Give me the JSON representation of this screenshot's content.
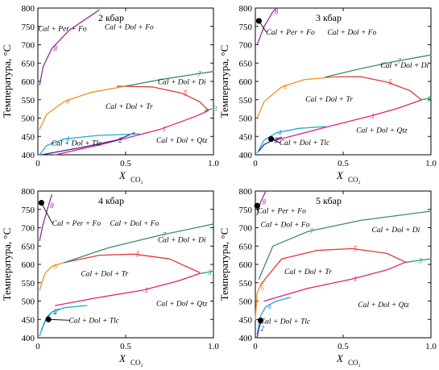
{
  "figure": {
    "y_axis_label": "Температура, °C",
    "x_axis_label": "X",
    "x_axis_label_sub": "CO₂",
    "curve_colors": {
      "1": "#e0207a",
      "2": "#2b2f8f",
      "3": "#2e9e5a",
      "4": "#1ea8d6",
      "5": "#e03a3a",
      "6": "#f0902a",
      "7": "#3e8a6e",
      "8": "#9c2a9c"
    }
  },
  "chart_data": [
    {
      "type": "line",
      "title": "2 кбар",
      "xlabel": "X CO₂",
      "ylabel": "Температура, °C",
      "xlim": [
        0,
        1
      ],
      "ylim": [
        400,
        800
      ],
      "x_ticks": [
        "0",
        "0.5",
        "1.0"
      ],
      "y_ticks": [
        "400",
        "450",
        "500",
        "550",
        "600",
        "650",
        "700",
        "750",
        "800"
      ],
      "series": [
        {
          "name": "1",
          "points": [
            [
              0.1,
              400
            ],
            [
              0.38,
              430
            ],
            [
              0.7,
              470
            ],
            [
              0.9,
              505
            ],
            [
              0.97,
              520
            ]
          ]
        },
        {
          "name": "2",
          "points": [
            [
              0.02,
              400
            ],
            [
              0.25,
              420
            ],
            [
              0.45,
              440
            ],
            [
              0.55,
              460
            ]
          ]
        },
        {
          "name": "3",
          "points": [
            [
              0.95,
              520
            ],
            [
              0.99,
              525
            ]
          ]
        },
        {
          "name": "4",
          "points": [
            [
              0.01,
              400
            ],
            [
              0.05,
              425
            ],
            [
              0.15,
              443
            ],
            [
              0.35,
              453
            ],
            [
              0.58,
              457
            ]
          ]
        },
        {
          "name": "5",
          "points": [
            [
              0.45,
              587
            ],
            [
              0.65,
              585
            ],
            [
              0.82,
              568
            ],
            [
              0.92,
              545
            ],
            [
              0.97,
              522
            ]
          ]
        },
        {
          "name": "6",
          "points": [
            [
              0.01,
              470
            ],
            [
              0.05,
              510
            ],
            [
              0.15,
              545
            ],
            [
              0.3,
              570
            ],
            [
              0.5,
              587
            ]
          ]
        },
        {
          "name": "7",
          "points": [
            [
              0.5,
              587
            ],
            [
              0.7,
              605
            ],
            [
              0.9,
              620
            ],
            [
              1.0,
              627
            ]
          ]
        },
        {
          "name": "8",
          "points": [
            [
              0.01,
              590
            ],
            [
              0.03,
              640
            ],
            [
              0.08,
              690
            ],
            [
              0.18,
              740
            ],
            [
              0.35,
              795
            ]
          ]
        }
      ],
      "annotations": [
        {
          "text": "Cal + Dol + Fo",
          "x": 0.52,
          "y": 742
        },
        {
          "text": "Cal + Dol + Di",
          "x": 0.82,
          "y": 592
        },
        {
          "text": "Cal + Dol + Tr",
          "x": 0.52,
          "y": 525
        },
        {
          "text": "Cal + Dol + Qtz",
          "x": 0.82,
          "y": 433
        },
        {
          "text": "Cal + Dol + Tlc",
          "x": 0.22,
          "y": 425
        },
        {
          "text": "Cal + Per + Fo",
          "x": 0.14,
          "y": 737
        }
      ],
      "points": []
    },
    {
      "type": "line",
      "title": "3 кбар",
      "xlabel": "X CO₂",
      "ylabel": "Температура, °C",
      "xlim": [
        0,
        1
      ],
      "ylim": [
        400,
        800
      ],
      "x_ticks": [
        "0",
        "0.5",
        "1.0"
      ],
      "y_ticks": [
        "400",
        "450",
        "500",
        "550",
        "600",
        "650",
        "700",
        "750",
        "800"
      ],
      "series": [
        {
          "name": "1",
          "points": [
            [
              0.12,
              440
            ],
            [
              0.4,
              475
            ],
            [
              0.65,
              505
            ],
            [
              0.8,
              525
            ],
            [
              0.95,
              550
            ]
          ]
        },
        {
          "name": "2",
          "points": [
            [
              0.02,
              410
            ],
            [
              0.05,
              428
            ],
            [
              0.1,
              440
            ],
            [
              0.15,
              448
            ]
          ]
        },
        {
          "name": "3",
          "points": [
            [
              0.94,
              550
            ],
            [
              0.97,
              552
            ],
            [
              1.0,
              556
            ]
          ]
        },
        {
          "name": "4",
          "points": [
            [
              0.01,
              405
            ],
            [
              0.05,
              440
            ],
            [
              0.12,
              460
            ],
            [
              0.25,
              472
            ],
            [
              0.4,
              477
            ]
          ]
        },
        {
          "name": "5",
          "points": [
            [
              0.4,
              612
            ],
            [
              0.6,
              613
            ],
            [
              0.75,
              598
            ],
            [
              0.88,
              575
            ],
            [
              0.94,
              552
            ]
          ]
        },
        {
          "name": "6",
          "points": [
            [
              0.01,
              500
            ],
            [
              0.05,
              545
            ],
            [
              0.15,
              585
            ],
            [
              0.28,
              605
            ],
            [
              0.45,
              612
            ]
          ]
        },
        {
          "name": "7",
          "points": [
            [
              0.4,
              612
            ],
            [
              0.6,
              635
            ],
            [
              0.8,
              655
            ],
            [
              1.0,
              672
            ]
          ]
        },
        {
          "name": "8",
          "points": [
            [
              0.01,
              700
            ],
            [
              0.05,
              750
            ],
            [
              0.1,
              790
            ],
            [
              0.12,
              800
            ]
          ]
        }
      ],
      "annotations": [
        {
          "text": "Cal + Dol + Fo",
          "x": 0.55,
          "y": 728
        },
        {
          "text": "Cal + Dol + Di",
          "x": 0.85,
          "y": 637
        },
        {
          "text": "Cal + Dol + Tr",
          "x": 0.42,
          "y": 545
        },
        {
          "text": "Cal + Dol + Qtz",
          "x": 0.72,
          "y": 460
        },
        {
          "text": "Cal + Dol + Tlc",
          "x": 0.28,
          "y": 426
        },
        {
          "text": "Cal + Per + Fo",
          "x": 0.2,
          "y": 728
        }
      ],
      "points": [
        {
          "x": 0.02,
          "y": 765
        },
        {
          "x": 0.09,
          "y": 443
        }
      ]
    },
    {
      "type": "line",
      "title": "4 кбар",
      "xlabel": "X CO₂",
      "ylabel": "Температура, °C",
      "xlim": [
        0,
        1
      ],
      "ylim": [
        400,
        800
      ],
      "x_ticks": [
        "0",
        "0.5",
        "1.0"
      ],
      "y_ticks": [
        "400",
        "450",
        "500",
        "550",
        "600",
        "650",
        "700",
        "750",
        "800"
      ],
      "series": [
        {
          "name": "1",
          "points": [
            [
              0.1,
              488
            ],
            [
              0.35,
              510
            ],
            [
              0.6,
              530
            ],
            [
              0.8,
              555
            ],
            [
              0.92,
              575
            ]
          ]
        },
        {
          "name": "2",
          "points": [
            [
              0.02,
              420
            ],
            [
              0.05,
              455
            ],
            [
              0.08,
              470
            ],
            [
              0.12,
              478
            ]
          ]
        },
        {
          "name": "3",
          "points": [
            [
              0.92,
              575
            ],
            [
              0.96,
              578
            ],
            [
              1.0,
              582
            ]
          ]
        },
        {
          "name": "4",
          "points": [
            [
              0.01,
              405
            ],
            [
              0.04,
              445
            ],
            [
              0.08,
              470
            ],
            [
              0.15,
              482
            ],
            [
              0.28,
              488
            ]
          ]
        },
        {
          "name": "5",
          "points": [
            [
              0.15,
              605
            ],
            [
              0.35,
              625
            ],
            [
              0.55,
              628
            ],
            [
              0.75,
              615
            ],
            [
              0.92,
              578
            ]
          ]
        },
        {
          "name": "6",
          "points": [
            [
              0.01,
              530
            ],
            [
              0.04,
              575
            ],
            [
              0.08,
              595
            ],
            [
              0.15,
              605
            ]
          ]
        },
        {
          "name": "7",
          "points": [
            [
              0.15,
              605
            ],
            [
              0.4,
              645
            ],
            [
              0.7,
              680
            ],
            [
              1.0,
              710
            ]
          ]
        },
        {
          "name": "8",
          "points": [
            [
              0.01,
              665
            ],
            [
              0.03,
              710
            ],
            [
              0.06,
              760
            ],
            [
              0.08,
              790
            ]
          ]
        }
      ],
      "annotations": [
        {
          "text": "Cal + Dol + Fo",
          "x": 0.55,
          "y": 705
        },
        {
          "text": "Cal + Dol + Di",
          "x": 0.82,
          "y": 660
        },
        {
          "text": "Cal + Dol + Tr",
          "x": 0.38,
          "y": 568
        },
        {
          "text": "Cal + Dol + Qtz",
          "x": 0.82,
          "y": 487
        },
        {
          "text": "Cal + Dol + Tlc",
          "x": 0.32,
          "y": 441
        },
        {
          "text": "Cal + Per + Fo",
          "x": 0.22,
          "y": 705
        }
      ],
      "points": [
        {
          "x": 0.02,
          "y": 768
        },
        {
          "x": 0.06,
          "y": 450
        }
      ]
    },
    {
      "type": "line",
      "title": "5 кбар",
      "xlabel": "X CO₂",
      "ylabel": "Температура, °C",
      "xlim": [
        0,
        1
      ],
      "ylim": [
        400,
        800
      ],
      "x_ticks": [
        "0",
        "0.5",
        "1.0"
      ],
      "y_ticks": [
        "400",
        "450",
        "500",
        "550",
        "600",
        "650",
        "700",
        "750",
        "800"
      ],
      "series": [
        {
          "name": "1",
          "points": [
            [
              0.05,
              500
            ],
            [
              0.3,
              535
            ],
            [
              0.55,
              560
            ],
            [
              0.75,
              585
            ],
            [
              0.85,
              605
            ]
          ]
        },
        {
          "name": "2",
          "points": [
            [
              0.01,
              400
            ],
            [
              0.02,
              425
            ],
            [
              0.03,
              440
            ]
          ]
        },
        {
          "name": "3",
          "points": [
            [
              0.85,
              605
            ],
            [
              0.92,
              610
            ],
            [
              1.0,
              615
            ]
          ]
        },
        {
          "name": "4",
          "points": [
            [
              0.01,
              410
            ],
            [
              0.03,
              460
            ],
            [
              0.06,
              485
            ],
            [
              0.12,
              500
            ],
            [
              0.2,
              510
            ]
          ]
        },
        {
          "name": "5",
          "points": [
            [
              0.03,
              545
            ],
            [
              0.15,
              615
            ],
            [
              0.35,
              638
            ],
            [
              0.55,
              643
            ],
            [
              0.75,
              630
            ],
            [
              0.86,
              605
            ]
          ]
        },
        {
          "name": "6",
          "points": [
            [
              0.0,
              450
            ],
            [
              0.01,
              520
            ],
            [
              0.02,
              535
            ],
            [
              0.05,
              555
            ]
          ]
        },
        {
          "name": "7",
          "points": [
            [
              0.02,
              560
            ],
            [
              0.1,
              650
            ],
            [
              0.3,
              690
            ],
            [
              0.6,
              720
            ],
            [
              1.0,
              745
            ]
          ]
        },
        {
          "name": "8",
          "points": [
            [
              0.01,
              735
            ],
            [
              0.03,
              770
            ],
            [
              0.06,
              800
            ]
          ]
        }
      ],
      "annotations": [
        {
          "text": "Cal + Per + Fo",
          "x": 0.15,
          "y": 740
        },
        {
          "text": "Cal + Dol + Fo",
          "x": 0.17,
          "y": 702
        },
        {
          "text": "Cal + Dol + Di",
          "x": 0.8,
          "y": 688
        },
        {
          "text": "Cal + Dol + Tr",
          "x": 0.3,
          "y": 574
        },
        {
          "text": "Cal + Dol + Qtz",
          "x": 0.73,
          "y": 483
        },
        {
          "text": "Cal + Dol + Tlc",
          "x": 0.17,
          "y": 438
        }
      ],
      "points": [
        {
          "x": 0.01,
          "y": 760
        },
        {
          "x": 0.03,
          "y": 447
        }
      ]
    }
  ]
}
